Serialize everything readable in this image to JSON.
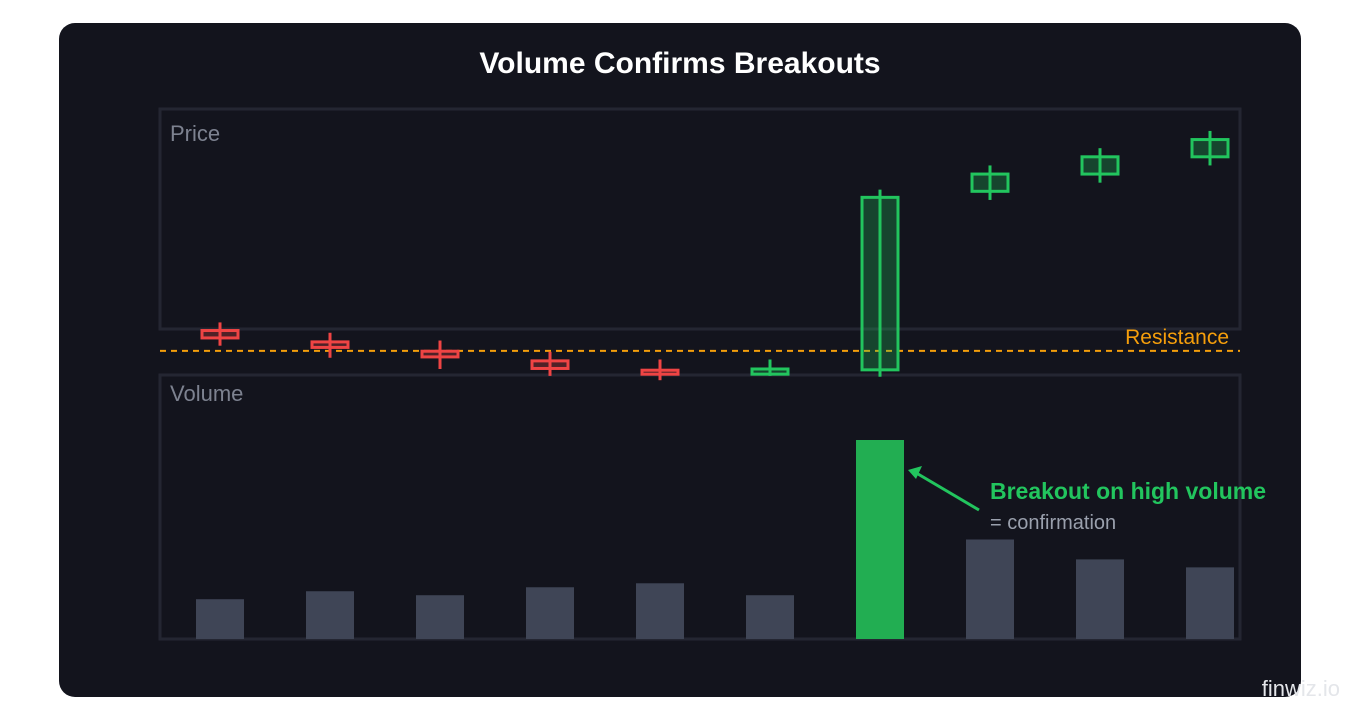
{
  "title": "Volume Confirms Breakouts",
  "watermark": "finwiz.io",
  "chart_data": {
    "type": "candlestick+bar",
    "title": "Volume Confirms Breakouts",
    "panels": [
      {
        "name": "price",
        "label": "Price"
      },
      {
        "name": "volume",
        "label": "Volume"
      }
    ],
    "candles": [
      {
        "direction": "down",
        "open": 36.8,
        "close": 32.5,
        "high": 41.5,
        "low": 28.0
      },
      {
        "direction": "down",
        "open": 30.2,
        "close": 27.0,
        "high": 35.5,
        "low": 21.0
      },
      {
        "direction": "down",
        "open": 24.8,
        "close": 21.5,
        "high": 31.0,
        "low": 14.5
      },
      {
        "direction": "down",
        "open": 19.2,
        "close": 14.8,
        "high": 24.5,
        "low": 10.5
      },
      {
        "direction": "down",
        "open": 13.8,
        "close": 11.5,
        "high": 20.0,
        "low": 8.0
      },
      {
        "direction": "up",
        "open": 11.5,
        "close": 14.5,
        "high": 20.0,
        "low": 10.5
      },
      {
        "direction": "up",
        "open": 14.0,
        "close": 114.0,
        "high": 118.5,
        "low": 10.0
      },
      {
        "direction": "up",
        "open": 117.5,
        "close": 127.5,
        "high": 132.5,
        "low": 112.5
      },
      {
        "direction": "up",
        "open": 127.5,
        "close": 137.5,
        "high": 142.5,
        "low": 122.5
      },
      {
        "direction": "up",
        "open": 137.5,
        "close": 147.5,
        "high": 152.5,
        "low": 132.5
      }
    ],
    "volume": [
      20,
      24,
      22,
      26,
      28,
      22,
      100,
      50,
      40,
      36
    ],
    "resistance": {
      "label": "Resistance",
      "value": 25.0
    },
    "price_range": [
      0,
      160
    ],
    "volume_range": [
      0,
      100
    ],
    "annotation": {
      "candle_index": 6,
      "text": "Breakout on high volume",
      "subtext": "= confirmation"
    },
    "colors": {
      "up": "#22c55e",
      "down": "#ef4444",
      "volume": "#3f4556",
      "volume_highlight": "#22ae52",
      "resistance": "#f59e0b",
      "panel_border": "#242632",
      "muted_text": "#7d8290"
    }
  }
}
